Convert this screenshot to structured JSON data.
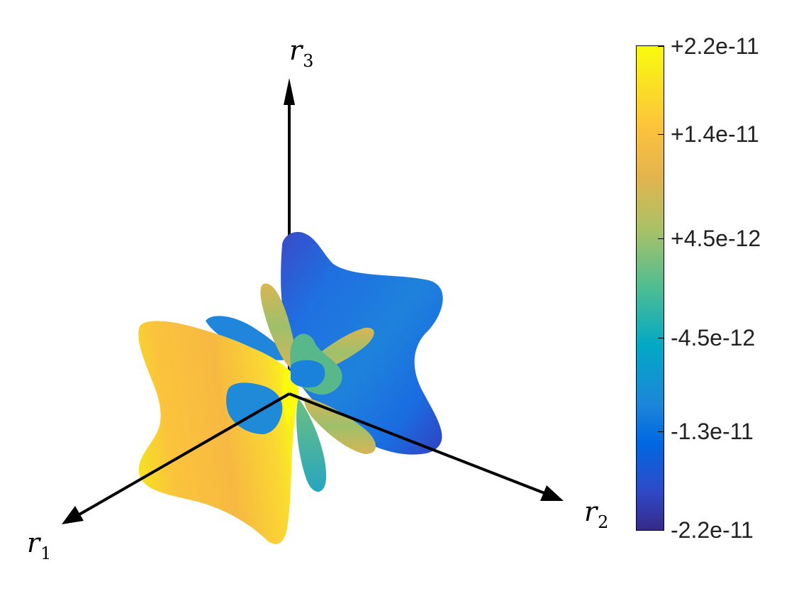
{
  "chart_data": {
    "type": "3d-surface",
    "axes": [
      {
        "id": "r1",
        "base": "r",
        "sub": "1"
      },
      {
        "id": "r2",
        "base": "r",
        "sub": "2"
      },
      {
        "id": "r3",
        "base": "r",
        "sub": "3"
      }
    ],
    "colorbar": {
      "colormap": "parula",
      "min": -2.2e-11,
      "max": 2.2e-11,
      "ticks": [
        {
          "value": 2.2e-11,
          "label": "+2.2e-11"
        },
        {
          "value": 1.4e-11,
          "label": "+1.4e-11"
        },
        {
          "value": 4.5e-12,
          "label": "+4.5e-12"
        },
        {
          "value": -4.5e-12,
          "label": "-4.5e-12"
        },
        {
          "value": -1.3e-11,
          "label": "-1.3e-11"
        },
        {
          "value": -2.2e-11,
          "label": "-2.2e-11"
        }
      ],
      "colors": {
        "high": "#f9fb0e",
        "mid_high": "#fcc23d",
        "mid": "#4ebd93",
        "mid_low": "#0068e1",
        "low": "#352a87"
      }
    }
  }
}
